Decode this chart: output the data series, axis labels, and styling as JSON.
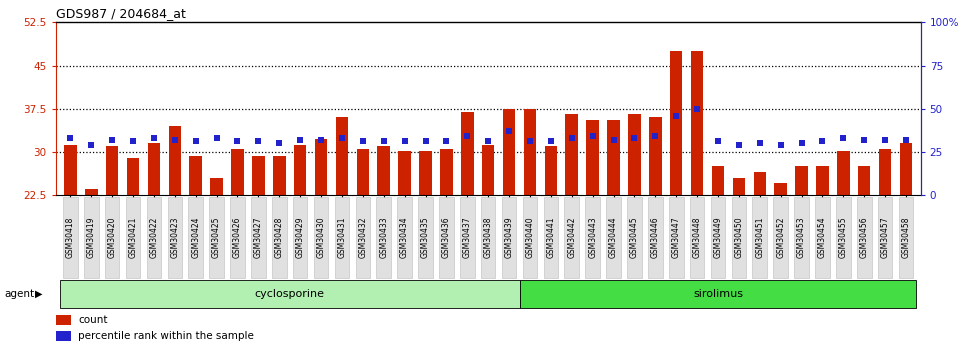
{
  "title": "GDS987 / 204684_at",
  "ylim_left": [
    22.5,
    52.5
  ],
  "ylim_right": [
    0,
    100
  ],
  "yticks_left": [
    22.5,
    30,
    37.5,
    45,
    52.5
  ],
  "yticks_right": [
    0,
    25,
    50,
    75,
    100
  ],
  "yticklabels_right": [
    "0",
    "25",
    "50",
    "75",
    "100%"
  ],
  "bar_color": "#cc2200",
  "dot_color": "#2222cc",
  "bg_color": "#ffffff",
  "categories": [
    "GSM30418",
    "GSM30419",
    "GSM30420",
    "GSM30421",
    "GSM30422",
    "GSM30423",
    "GSM30424",
    "GSM30425",
    "GSM30426",
    "GSM30427",
    "GSM30428",
    "GSM30429",
    "GSM30430",
    "GSM30431",
    "GSM30432",
    "GSM30433",
    "GSM30434",
    "GSM30435",
    "GSM30436",
    "GSM30437",
    "GSM30438",
    "GSM30439",
    "GSM30440",
    "GSM30441",
    "GSM30442",
    "GSM30443",
    "GSM30444",
    "GSM30445",
    "GSM30446",
    "GSM30447",
    "GSM30448",
    "GSM30449",
    "GSM30450",
    "GSM30451",
    "GSM30452",
    "GSM30453",
    "GSM30454",
    "GSM30455",
    "GSM30456",
    "GSM30457",
    "GSM30458"
  ],
  "counts": [
    31.2,
    23.5,
    31.0,
    29.0,
    31.5,
    34.5,
    29.2,
    25.5,
    30.5,
    29.2,
    29.2,
    31.2,
    32.2,
    36.0,
    30.5,
    31.0,
    30.2,
    30.2,
    30.5,
    37.0,
    31.2,
    37.5,
    37.5,
    31.0,
    36.5,
    35.5,
    35.5,
    36.5,
    36.0,
    47.5,
    47.5,
    27.5,
    25.5,
    26.5,
    24.5,
    27.5,
    27.5,
    30.2,
    27.5,
    30.5,
    31.5
  ],
  "percentile_ranks": [
    33,
    29,
    32,
    31,
    33,
    32,
    31,
    33,
    31,
    31,
    30,
    32,
    32,
    33,
    31,
    31,
    31,
    31,
    31,
    34,
    31,
    37,
    31,
    31,
    33,
    34,
    32,
    33,
    34,
    46,
    50,
    31,
    29,
    30,
    29,
    30,
    31,
    33,
    32,
    32,
    32
  ],
  "group1_count": 22,
  "group1_label": "cyclosporine",
  "group2_label": "sirolimus",
  "group_color1": "#b2f0b2",
  "group_color2": "#44dd44",
  "agent_label": "agent",
  "legend_count_label": "count",
  "legend_pct_label": "percentile rank within the sample",
  "left_tick_color": "#cc2200",
  "right_tick_color": "#2222cc",
  "hline_y": [
    30,
    37.5,
    45
  ]
}
